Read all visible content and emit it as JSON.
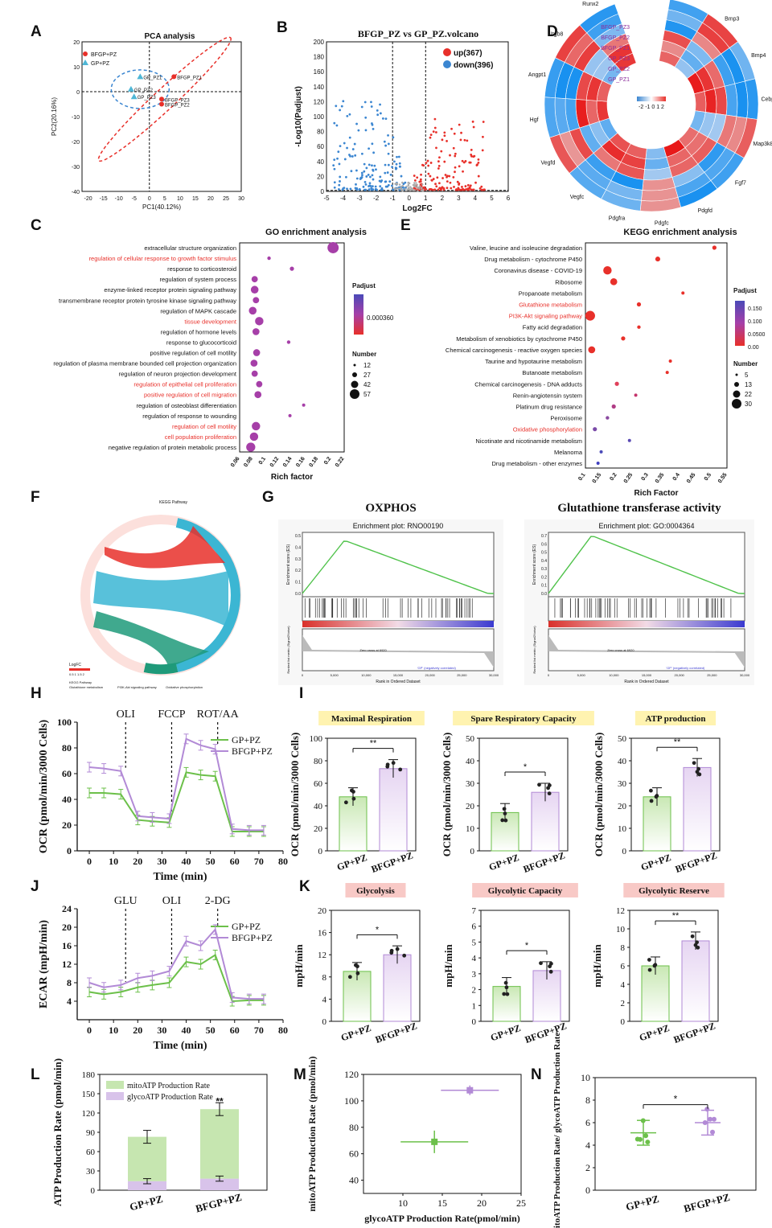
{
  "panel_letters": [
    "A",
    "B",
    "C",
    "D",
    "E",
    "F",
    "G",
    "H",
    "I",
    "J",
    "K",
    "L",
    "M",
    "N"
  ],
  "colors": {
    "green": "#6cc04a",
    "purple": "#b28ad6",
    "red": "#e8302a",
    "blue": "#3b86d1",
    "lightgreen": "#c9e8b4",
    "lightpurple": "#e6d5f2"
  },
  "chart_data": [
    {
      "id": "A",
      "type": "scatter",
      "title": "PCA analysis",
      "xlabel": "PC1(40.12%)",
      "ylabel": "PC2(20.16%)",
      "xlim": [
        -20,
        30
      ],
      "ylim": [
        -40,
        20
      ],
      "xticks": [
        "-20",
        "-15",
        "-10",
        "-5",
        "0",
        "5",
        "10",
        "15",
        "20",
        "25",
        "30"
      ],
      "yticks": [
        "20",
        "10",
        "0",
        "-10",
        "-20",
        "-30",
        "-40"
      ],
      "legend": [
        "BFGP+PZ",
        "GP+PZ"
      ],
      "series": [
        {
          "name": "BFGP+PZ",
          "points": [
            [
              8,
              6,
              "BFGP_PZ1"
            ],
            [
              4,
              -3,
              "BFGP_PZ3"
            ],
            [
              4,
              -5,
              "BFGP_PZ2"
            ]
          ]
        },
        {
          "name": "GP+PZ",
          "points": [
            [
              -3,
              6,
              "GP_PZ1"
            ],
            [
              -6,
              1,
              "GP_PZ2"
            ],
            [
              -5,
              -2,
              "GP_PZ3"
            ]
          ]
        }
      ]
    },
    {
      "id": "B",
      "type": "scatter",
      "title": "BFGP_PZ vs GP_PZ.volcano",
      "xlabel": "Log2FC",
      "ylabel": "-Log10(Padjust)",
      "xlim": [
        -5,
        6
      ],
      "ylim": [
        0,
        200
      ],
      "xticks": [
        "-5",
        "-4",
        "-3",
        "-2",
        "-1",
        "0",
        "1",
        "2",
        "3",
        "4",
        "5",
        "6"
      ],
      "yticks": [
        "0",
        "20",
        "40",
        "60",
        "80",
        "100",
        "120",
        "140",
        "160",
        "180",
        "200"
      ],
      "legend": [
        "up(367)",
        "down(396)"
      ]
    },
    {
      "id": "C",
      "type": "scatter",
      "title": "GO enrichment analysis",
      "xlabel": "Rich factor",
      "xticks": [
        "0.06",
        "0.08",
        "0.1",
        "0.12",
        "0.14",
        "0.16",
        "0.18",
        "0.2",
        "0.22"
      ],
      "legend_padjust_title": "Padjust",
      "legend_padjust_value": "0.000360",
      "legend_number_title": "Number",
      "legend_number_values": [
        "12",
        "27",
        "42",
        "57"
      ],
      "terms": [
        {
          "label": "extracellular structure organization",
          "x": 0.203,
          "size": 16,
          "highlight": false
        },
        {
          "label": "regulation of cellular response to growth factor stimulus",
          "x": 0.105,
          "size": 5,
          "highlight": true
        },
        {
          "label": "response to corticosteroid",
          "x": 0.14,
          "size": 6,
          "highlight": false
        },
        {
          "label": "regulation of system process",
          "x": 0.083,
          "size": 9,
          "highlight": false
        },
        {
          "label": "enzyme-linked receptor protein signaling pathway",
          "x": 0.083,
          "size": 11,
          "highlight": false
        },
        {
          "label": "transmembrane receptor protein tyrosine kinase signaling pathway",
          "x": 0.085,
          "size": 9,
          "highlight": false
        },
        {
          "label": "regulation of MAPK cascade",
          "x": 0.08,
          "size": 11,
          "highlight": false
        },
        {
          "label": "tissue development",
          "x": 0.09,
          "size": 12,
          "highlight": true
        },
        {
          "label": "regulation of hormone levels",
          "x": 0.085,
          "size": 10,
          "highlight": false
        },
        {
          "label": "response to glucocorticoid",
          "x": 0.135,
          "size": 5,
          "highlight": false
        },
        {
          "label": "positive regulation of cell motility",
          "x": 0.086,
          "size": 10,
          "highlight": false
        },
        {
          "label": "regulation of plasma membrane bounded cell projection organization",
          "x": 0.082,
          "size": 10,
          "highlight": false
        },
        {
          "label": "regulation of neuron projection development",
          "x": 0.083,
          "size": 9,
          "highlight": false
        },
        {
          "label": "regulation of epithelial cell proliferation",
          "x": 0.09,
          "size": 9,
          "highlight": true
        },
        {
          "label": "positive regulation of cell migration",
          "x": 0.088,
          "size": 10,
          "highlight": true
        },
        {
          "label": "regulation of osteoblast differentiation",
          "x": 0.158,
          "size": 3,
          "highlight": false
        },
        {
          "label": "regulation of response to wounding",
          "x": 0.137,
          "size": 3,
          "highlight": false
        },
        {
          "label": "regulation of cell motility",
          "x": 0.085,
          "size": 12,
          "highlight": true
        },
        {
          "label": "cell population proliferation",
          "x": 0.082,
          "size": 12,
          "highlight": true
        },
        {
          "label": "negative regulation of protein metabolic process",
          "x": 0.077,
          "size": 13,
          "highlight": false
        }
      ]
    },
    {
      "id": "E",
      "type": "scatter",
      "title": "KEGG enrichment analysis",
      "xlabel": "Rich Factor",
      "xticks": [
        "0.1",
        "0.15",
        "0.2",
        "0.25",
        "0.3",
        "0.35",
        "0.4",
        "0.45",
        "0.5",
        "0.55"
      ],
      "legend_padjust_title": "Padjust",
      "legend_padjust_values": [
        "0.150",
        "0.100",
        "0.0500",
        "0.00"
      ],
      "legend_number_title": "Number",
      "legend_number_values": [
        "5",
        "13",
        "22",
        "30"
      ],
      "terms": [
        {
          "label": "Valine, leucine and isoleucine degradation",
          "x": 0.51,
          "size": 6,
          "color": "#e8302a",
          "highlight": false
        },
        {
          "label": "Drug metabolism - cytochrome P450",
          "x": 0.33,
          "size": 7,
          "color": "#e8302a",
          "highlight": false
        },
        {
          "label": "Coronavirus disease - COVID-19",
          "x": 0.17,
          "size": 12,
          "color": "#e8302a",
          "highlight": false
        },
        {
          "label": "Ribosome",
          "x": 0.19,
          "size": 10,
          "color": "#e8302a",
          "highlight": false
        },
        {
          "label": "Propanoate metabolism",
          "x": 0.41,
          "size": 4,
          "color": "#e8302a",
          "highlight": false
        },
        {
          "label": "Glutathione metabolism",
          "x": 0.27,
          "size": 6,
          "color": "#e8302a",
          "highlight": true
        },
        {
          "label": "PI3K-Akt signaling pathway",
          "x": 0.115,
          "size": 14,
          "color": "#e8302a",
          "highlight": true
        },
        {
          "label": "Fatty acid degradation",
          "x": 0.27,
          "size": 5,
          "color": "#e8302a",
          "highlight": false
        },
        {
          "label": "Metabolism of xenobiotics by cytochrome P450",
          "x": 0.22,
          "size": 6,
          "color": "#e8302a",
          "highlight": false
        },
        {
          "label": "Chemical carcinogenesis - reactive oxygen species",
          "x": 0.12,
          "size": 10,
          "color": "#e8302a",
          "highlight": false
        },
        {
          "label": "Taurine and hypotaurine metabolism",
          "x": 0.37,
          "size": 3,
          "color": "#e8302a",
          "highlight": false
        },
        {
          "label": "Butanoate metabolism",
          "x": 0.36,
          "size": 3,
          "color": "#e8302a",
          "highlight": false
        },
        {
          "label": "Chemical carcinogenesis - DNA adducts",
          "x": 0.2,
          "size": 6,
          "color": "#e0405a",
          "highlight": false
        },
        {
          "label": "Renin-angiotensin system",
          "x": 0.26,
          "size": 3,
          "color": "#c4336b",
          "highlight": false
        },
        {
          "label": "Platinum drug resistance",
          "x": 0.19,
          "size": 6,
          "color": "#b03c85",
          "highlight": false
        },
        {
          "label": "Peroxisome",
          "x": 0.17,
          "size": 5,
          "color": "#8a4aa0",
          "highlight": false
        },
        {
          "label": "Oxidative phosphorylation",
          "x": 0.13,
          "size": 6,
          "color": "#7a4aa8",
          "highlight": true
        },
        {
          "label": "Nicotinate and nicotinamide metabolism",
          "x": 0.24,
          "size": 3,
          "color": "#5a4ab4",
          "highlight": false
        },
        {
          "label": "Melanoma",
          "x": 0.15,
          "size": 4,
          "color": "#4a4ab8",
          "highlight": false
        },
        {
          "label": "Drug metabolism - other enzymes",
          "x": 0.14,
          "size": 4,
          "color": "#4040c0",
          "highlight": false
        }
      ]
    },
    {
      "id": "D",
      "type": "heatmap",
      "scale_label": "-2 -1 0 1 2",
      "rows": [
        "BFGP_PZ3",
        "BFGP_PZ2",
        "BFGP_PZ1",
        "GP_PZ3",
        "GP_PZ2",
        "GP_PZ1"
      ],
      "genes": [
        "Sfrp1",
        "Bmp3",
        "Bmp4",
        "Cebpd",
        "Map3k8",
        "Fgf7",
        "Pdgfd",
        "Pdgfc",
        "Pdgfra",
        "Vegfc",
        "Vegfd",
        "Hgf",
        "Angpt1",
        "Itgb8",
        "Runx2"
      ]
    },
    {
      "id": "F",
      "type": "other",
      "title": "KEGG Pathway",
      "legend_title": "LogFC",
      "legend_scale": "0.5 1 1.5 2",
      "pathways": [
        "Glutathione metabolism",
        "PI3K-Akt signaling pathway",
        "Oxidative phosphorylation"
      ]
    },
    {
      "id": "G",
      "type": "line",
      "plots": [
        {
          "heading": "OXPHOS",
          "title": "Enrichment plot: RNO00190",
          "ylabel": "Enrichment score (ES)",
          "ylabel2": "Ranked list metric (Signal2Noise)",
          "xlabel": "Rank in Ordered Dataset",
          "pos_label": "'BF' (positively correlated)",
          "neg_label": "'GP' (negatively correlated)",
          "zero_label": "Zero cross at 6920",
          "xticks": [
            "0",
            "5,000",
            "10,000",
            "15,000",
            "20,000",
            "25,000",
            "30,000"
          ],
          "yticks": [
            "0.5",
            "0.4",
            "0.3",
            "0.2",
            "0.1",
            "0.0"
          ]
        },
        {
          "heading": "Glutathione transferase activity",
          "title": "Enrichment plot: GO:0004364",
          "ylabel": "Enrichment score (ES)",
          "ylabel2": "Ranked list metric (Signal2Noise)",
          "xlabel": "Rank in Ordered Dataset",
          "pos_label": "'BF' (positively correlated)",
          "neg_label": "'GP' (negatively correlated)",
          "zero_label": "Zero cross at 6920",
          "xticks": [
            "0",
            "5,000",
            "10,000",
            "15,000",
            "20,000",
            "25,000",
            "30,000"
          ],
          "yticks": [
            "0.7",
            "0.6",
            "0.5",
            "0.4",
            "0.3",
            "0.2",
            "0.1",
            "0.0"
          ]
        }
      ]
    },
    {
      "id": "H",
      "type": "line",
      "xlabel": "Time (min)",
      "ylabel": "OCR (pmol/min/3000 Cells)",
      "xlim": [
        -5,
        80
      ],
      "ylim": [
        0,
        100
      ],
      "xticks": [
        "0",
        "10",
        "20",
        "30",
        "40",
        "50",
        "60",
        "70",
        "80"
      ],
      "yticks": [
        "0",
        "20",
        "40",
        "60",
        "80",
        "100"
      ],
      "annotations": [
        {
          "label": "OLI",
          "x": 15
        },
        {
          "label": "FCCP",
          "x": 34
        },
        {
          "label": "ROT/AA",
          "x": 53
        }
      ],
      "x": [
        0,
        6,
        13,
        20,
        26,
        33,
        40,
        46,
        52,
        59,
        66,
        72
      ],
      "series": [
        {
          "name": "GP+PZ",
          "values": [
            45,
            45,
            44,
            24,
            23,
            22,
            61,
            59,
            58,
            15,
            15,
            15
          ]
        },
        {
          "name": "BFGP+PZ",
          "values": [
            65,
            64,
            62,
            27,
            26,
            25,
            87,
            82,
            79,
            17,
            16,
            16
          ]
        }
      ]
    },
    {
      "id": "I",
      "type": "bar",
      "ylabel": "OCR (pmol/min/3000 Cells)",
      "categories": [
        "GP+PZ",
        "BFGP+PZ"
      ],
      "plots": [
        {
          "title": "Maximal Respiration",
          "values": [
            48,
            73
          ],
          "ylim": [
            0,
            100
          ],
          "yticks": [
            "0",
            "20",
            "40",
            "60",
            "80",
            "100"
          ],
          "sig": "**"
        },
        {
          "title": "Spare Respiratory Capacity",
          "values": [
            17,
            26
          ],
          "ylim": [
            0,
            50
          ],
          "yticks": [
            "0",
            "10",
            "20",
            "30",
            "40",
            "50"
          ],
          "sig": "*"
        },
        {
          "title": "ATP production",
          "values": [
            24,
            37
          ],
          "ylim": [
            0,
            50
          ],
          "yticks": [
            "0",
            "10",
            "20",
            "30",
            "40",
            "50"
          ],
          "sig": "**"
        }
      ]
    },
    {
      "id": "J",
      "type": "line",
      "xlabel": "Time (min)",
      "ylabel": "ECAR (mpH/min)",
      "xlim": [
        -5,
        80
      ],
      "ylim": [
        0,
        24
      ],
      "xticks": [
        "0",
        "10",
        "20",
        "30",
        "40",
        "50",
        "60",
        "70",
        "80"
      ],
      "yticks": [
        "4",
        "8",
        "12",
        "16",
        "20",
        "24"
      ],
      "annotations": [
        {
          "label": "GLU",
          "x": 15
        },
        {
          "label": "OLI",
          "x": 34
        },
        {
          "label": "2-DG",
          "x": 53
        }
      ],
      "x": [
        0,
        6,
        13,
        20,
        26,
        33,
        40,
        46,
        52,
        59,
        66,
        72
      ],
      "series": [
        {
          "name": "GP+PZ",
          "values": [
            6,
            5.5,
            6,
            7,
            7.5,
            8,
            12.5,
            12,
            14,
            4,
            4.2,
            4.2
          ]
        },
        {
          "name": "BFGP+PZ",
          "values": [
            8,
            7,
            7.5,
            9,
            9.5,
            10.5,
            17,
            16,
            19.5,
            4.8,
            4.5,
            4.5
          ]
        }
      ]
    },
    {
      "id": "K",
      "type": "bar",
      "ylabel": "mpH/min",
      "categories": [
        "GP+PZ",
        "BFGP+PZ"
      ],
      "plots": [
        {
          "title": "Glycolysis",
          "values": [
            9,
            12
          ],
          "ylim": [
            0,
            20
          ],
          "yticks": [
            "0",
            "4",
            "8",
            "12",
            "16",
            "20"
          ],
          "sig": "*"
        },
        {
          "title": "Glycolytic Capacity",
          "values": [
            2.2,
            3.2
          ],
          "ylim": [
            0,
            7
          ],
          "yticks": [
            "0",
            "1",
            "2",
            "3",
            "4",
            "5",
            "6",
            "7"
          ],
          "sig": "*"
        },
        {
          "title": "Glycolytic Reserve",
          "values": [
            6,
            8.7
          ],
          "ylim": [
            0,
            12
          ],
          "yticks": [
            "0",
            "2",
            "4",
            "6",
            "8",
            "10",
            "12"
          ],
          "sig": "**"
        }
      ]
    },
    {
      "id": "L",
      "type": "bar",
      "ylabel": "ATP Production Rate (pmol/min)",
      "categories": [
        "GP+PZ",
        "BFGP+PZ"
      ],
      "ylim": [
        0,
        180
      ],
      "yticks": [
        "0",
        "30",
        "60",
        "90",
        "120",
        "150",
        "180"
      ],
      "series": [
        {
          "name": "mitoATP Production Rate",
          "values": [
            69,
            108
          ]
        },
        {
          "name": "glycoATP Production Rate",
          "values": [
            14,
            18
          ]
        }
      ],
      "sig": "**"
    },
    {
      "id": "M",
      "type": "scatter",
      "xlabel": "glycoATP Production Rate(pmol/min)",
      "ylabel": "mitoATP Production Rate (pmol/min)",
      "xlim": [
        5,
        25
      ],
      "ylim": [
        30,
        120
      ],
      "xticks": [
        "10",
        "15",
        "20",
        "25"
      ],
      "yticks": [
        "40",
        "60",
        "80",
        "100",
        "120"
      ],
      "points": [
        {
          "x": 14,
          "y": 69
        },
        {
          "x": 18.5,
          "y": 108
        }
      ]
    },
    {
      "id": "N",
      "type": "scatter",
      "ylabel": "mitoATP Production Rate/ glycoATP Production Rate",
      "categories": [
        "GP+PZ",
        "BFGP+PZ"
      ],
      "ylim": [
        0,
        10
      ],
      "yticks": [
        "0",
        "2",
        "4",
        "6",
        "8",
        "10"
      ],
      "values": [
        5.1,
        6.0
      ],
      "sig": "*"
    }
  ]
}
